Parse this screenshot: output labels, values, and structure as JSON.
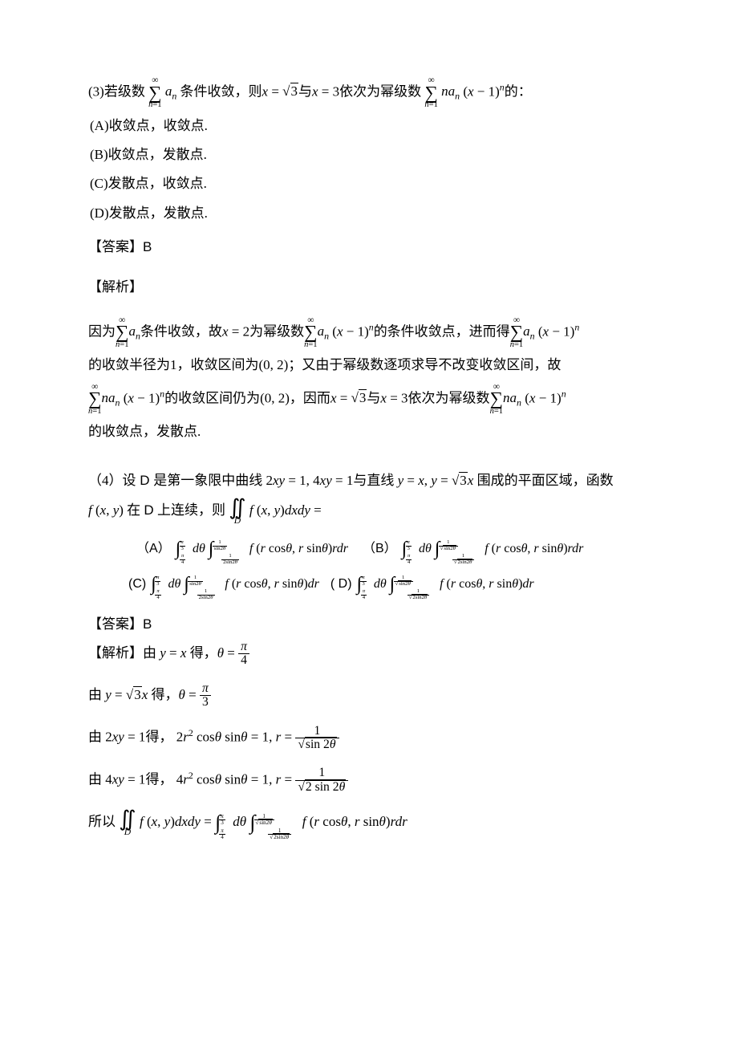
{
  "colors": {
    "text": "#000000",
    "background": "#ffffff"
  },
  "typography": {
    "body_family": "SimSun / Times New Roman",
    "body_size_pt": 12,
    "math_italic": true,
    "line_height": 1.9
  },
  "q3": {
    "stem_prefix": "(3)若级数",
    "sum1": {
      "top": "∞",
      "var": "n=1",
      "body_html": "a<sub>n</sub>"
    },
    "stem_mid1": "条件收敛，则",
    "x_eq": "x = √3 与 x = 3",
    "stem_mid2": "依次为幂级数",
    "sum2": {
      "top": "∞",
      "var": "n=1",
      "body_html": "na<sub>n</sub>(x−1)<sup>n</sup>"
    },
    "stem_suffix": "的：",
    "options": {
      "A": "收敛点，收敛点.",
      "B": "收敛点，发散点.",
      "C": "发散点，收敛点.",
      "D": "发散点，发散点."
    },
    "answer_label": "【答案】",
    "answer": "B",
    "analysis_label": "【解析】",
    "analysis_lines": [
      "因为 ∑_{n=1}^{∞} a_n 条件收敛，故 x = 2 为幂级数 ∑_{n=1}^{∞} a_n (x−1)^n 的条件收敛点，进而得 ∑_{n=1}^{∞} a_n (x−1)^n",
      "的收敛半径为1，收敛区间为 (0,2)；又由于幂级数逐项求导不改变收敛区间，故",
      "∑_{n=1}^{∞} n a_n (x−1)^n 的收敛区间仍为 (0,2)，因而 x = √3 与 x = 3 依次为幂级数 ∑_{n=1}^{∞} n a_n (x−1)^n",
      "的收敛点，发散点."
    ]
  },
  "q4": {
    "stem_prefix": "（4）设",
    "D_label": " D ",
    "stem_mid1": "是第一象限中曲线",
    "curves": "2xy = 1, 4xy = 1",
    "stem_mid2": "与直线",
    "lines_eq": "y = x, y = √3 x",
    "stem_mid3": "围成的平面区域，函数",
    "func_line": "f(x, y) 在 D 上连续，则 ∬_D f(x, y) dx dy =",
    "options": {
      "A": {
        "theta_lb": "π/4",
        "theta_ub": "π/3",
        "r_lb": "1/(2sin2θ)",
        "r_ub": "1/sin2θ",
        "tail": "f(r cosθ, r sinθ) r dr"
      },
      "B": {
        "theta_lb": "π/4",
        "theta_ub": "π/3",
        "r_lb": "1/√(2sin2θ)",
        "r_ub": "1/√(sin2θ)",
        "tail": "f(r cosθ, r sinθ) r dr"
      },
      "C": {
        "theta_lb": "π/4",
        "theta_ub": "π/3",
        "r_lb": "1/(2sin2θ)",
        "r_ub": "1/sin2θ",
        "tail": "f(r cosθ, r sinθ) dr"
      },
      "D": {
        "theta_lb": "π/4",
        "theta_ub": "π/3",
        "r_lb": "1/√(2sin2θ)",
        "r_ub": "1/√(sin2θ)",
        "tail": "f(r cosθ, r sinθ) dr"
      }
    },
    "answer_label": "【答案】",
    "answer": "B",
    "analysis_label": "【解析】",
    "analysis_lines_plain": [
      "由 y = x 得，θ = π/4",
      "由 y = √3 x 得，θ = π/3",
      "由 2xy = 1 得，2r² cosθ sinθ = 1, r = 1/√(sin2θ)",
      "由 4xy = 1 得，4r² cosθ sinθ = 1, r = 1/√(2 sin2θ)",
      "所以 ∬_D f(x,y) dx dy = ∫_{π/4}^{π/3} dθ ∫_{1/√(2sin2θ)}^{1/√(sin2θ)} f(r cosθ, r sinθ) r dr"
    ],
    "analysis_1": {
      "prefix": "由",
      "eq": "y = x",
      "mid": "得，",
      "res_html": "θ = <span class='frac'><span class='n'>π</span><span class='d'>4</span></span>"
    },
    "analysis_2": {
      "prefix": "由",
      "eq": "y = √3 x",
      "mid": "得，",
      "res_html": "θ = <span class='frac'><span class='n'>π</span><span class='d'>3</span></span>"
    },
    "analysis_3": {
      "prefix": "由",
      "eq": "2xy = 1",
      "mid": "得，",
      "mid2": "2r² cosθ sinθ = 1, ",
      "res_html": "r = <span class='frac'><span class='n'>1</span><span class='d'><span class='sqrt'><span>sin 2θ</span></span></span></span>"
    },
    "analysis_4": {
      "prefix": "由",
      "eq": "4xy = 1",
      "mid": "得，",
      "mid2": "4r² cosθ sinθ = 1, ",
      "res_html": "r = <span class='frac'><span class='n'>1</span><span class='d'><span class='sqrt'><span>2 sin 2θ</span></span></span></span>"
    }
  }
}
